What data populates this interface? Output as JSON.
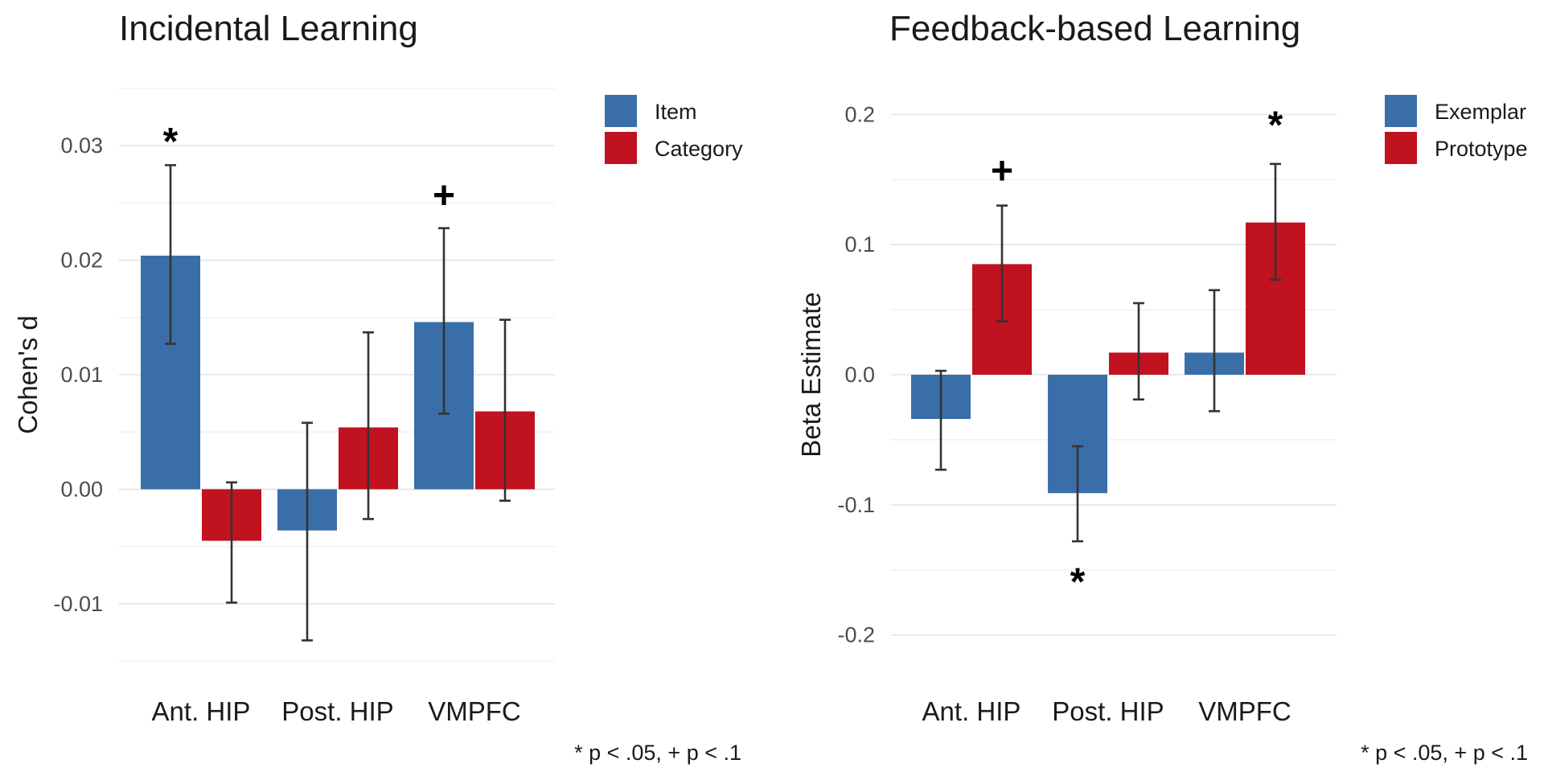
{
  "colors": {
    "series1": "#3a6ea8",
    "series2": "#c0121f"
  },
  "footnote": "* p < .05, + p < .1",
  "chart_data": [
    {
      "type": "bar",
      "title": "Incidental Learning",
      "xlabel": "",
      "ylabel": "Cohen's d",
      "ylim": [
        -0.015,
        0.035
      ],
      "yticks": [
        -0.01,
        0.0,
        0.01,
        0.02,
        0.03
      ],
      "ytick_labels": [
        "-0.01",
        "0.00",
        "0.01",
        "0.02",
        "0.03"
      ],
      "grid": true,
      "legend_position": "top-right",
      "categories": [
        "Ant. HIP",
        "Post. HIP",
        "VMPFC"
      ],
      "series": [
        {
          "name": "Item",
          "values": [
            0.0204,
            -0.0036,
            0.0146
          ],
          "error_low": [
            0.0127,
            -0.0132,
            0.0066
          ],
          "error_high": [
            0.0283,
            0.0058,
            0.0228
          ]
        },
        {
          "name": "Category",
          "values": [
            -0.0045,
            0.0054,
            0.0068
          ],
          "error_low": [
            -0.0099,
            -0.0026,
            -0.001
          ],
          "error_high": [
            0.0006,
            0.0137,
            0.0148
          ]
        }
      ],
      "annotations": [
        {
          "text": "*",
          "category": "Ant. HIP",
          "series": "Item",
          "y": 0.0305
        },
        {
          "text": "+",
          "category": "VMPFC",
          "series": "Item",
          "y": 0.0258
        }
      ]
    },
    {
      "type": "bar",
      "title": "Feedback-based Learning",
      "xlabel": "",
      "ylabel": "Beta Estimate",
      "ylim": [
        -0.22,
        0.22
      ],
      "yticks": [
        -0.2,
        -0.1,
        0.0,
        0.1,
        0.2
      ],
      "ytick_labels": [
        "-0.2",
        "-0.1",
        "0.0",
        "0.1",
        "0.2"
      ],
      "grid": true,
      "legend_position": "top-right",
      "categories": [
        "Ant. HIP",
        "Post. HIP",
        "VMPFC"
      ],
      "series": [
        {
          "name": "Exemplar",
          "values": [
            -0.034,
            -0.091,
            0.017
          ],
          "error_low": [
            -0.073,
            -0.128,
            -0.028
          ],
          "error_high": [
            0.003,
            -0.055,
            0.065
          ]
        },
        {
          "name": "Prototype",
          "values": [
            0.085,
            0.017,
            0.117
          ],
          "error_low": [
            0.041,
            -0.019,
            0.073
          ],
          "error_high": [
            0.13,
            0.055,
            0.162
          ]
        }
      ],
      "annotations": [
        {
          "text": "+",
          "category": "Ant. HIP",
          "series": "Prototype",
          "y": 0.158
        },
        {
          "text": "*",
          "category": "Post. HIP",
          "series": "Exemplar",
          "y": -0.158
        },
        {
          "text": "*",
          "category": "VMPFC",
          "series": "Prototype",
          "y": 0.193
        }
      ]
    }
  ]
}
